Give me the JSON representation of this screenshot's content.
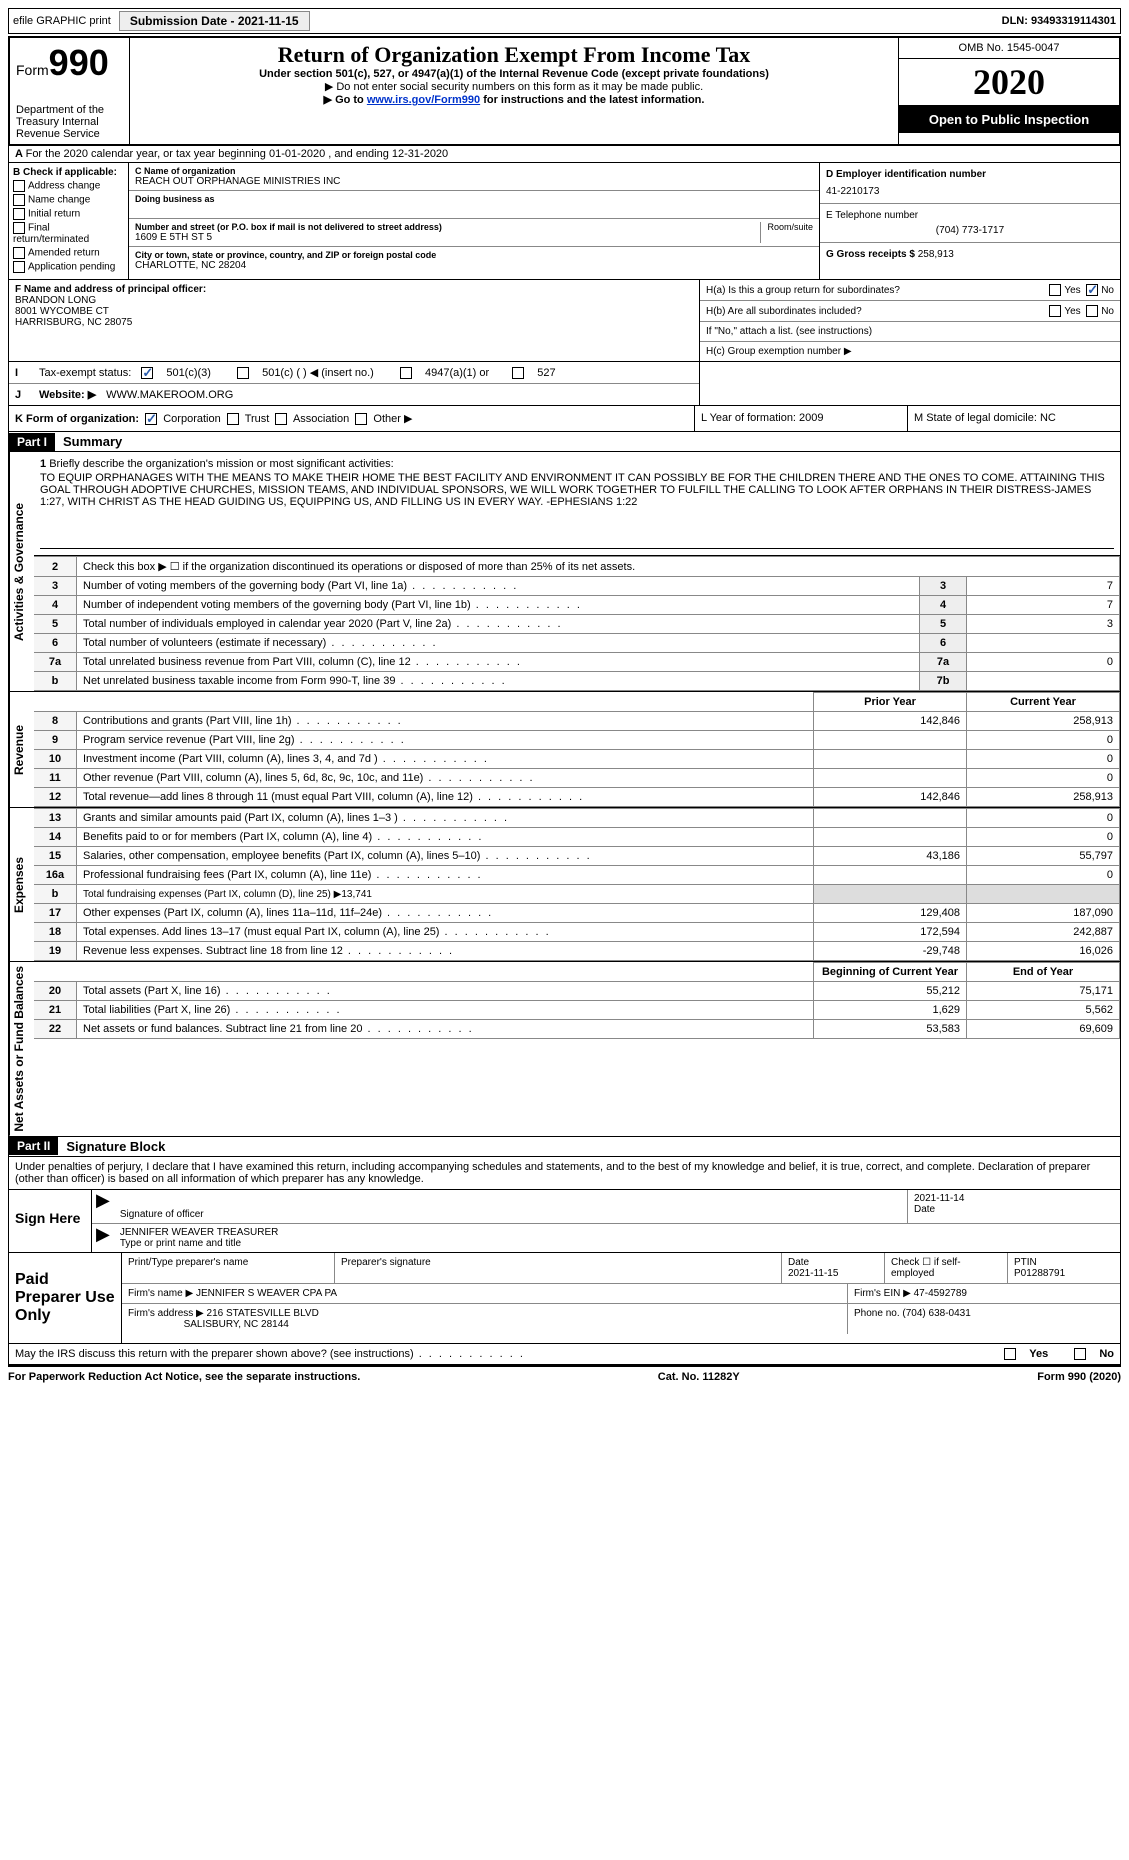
{
  "topbar": {
    "efile": "efile GRAPHIC print",
    "submission": "Submission Date - 2021-11-15",
    "dln": "DLN: 93493319114301"
  },
  "header": {
    "form": "Form",
    "num": "990",
    "dept": "Department of the Treasury Internal Revenue Service",
    "title": "Return of Organization Exempt From Income Tax",
    "subtitle": "Under section 501(c), 527, or 4947(a)(1) of the Internal Revenue Code (except private foundations)",
    "note1": "▶ Do not enter social security numbers on this form as it may be made public.",
    "note2_pre": "▶ Go to ",
    "note2_link": "www.irs.gov/Form990",
    "note2_post": " for instructions and the latest information.",
    "omb": "OMB No. 1545-0047",
    "year": "2020",
    "inspect": "Open to Public Inspection"
  },
  "sectionA": "For the 2020 calendar year, or tax year beginning 01-01-2020   , and ending 12-31-2020",
  "boxB": {
    "label": "B Check if applicable:",
    "items": [
      "Address change",
      "Name change",
      "Initial return",
      "Final return/terminated",
      "Amended return",
      "Application pending"
    ]
  },
  "boxC": {
    "label_name": "C Name of organization",
    "name": "REACH OUT ORPHANAGE MINISTRIES INC",
    "dba_label": "Doing business as",
    "addr_label": "Number and street (or P.O. box if mail is not delivered to street address)",
    "addr": "1609 E 5TH ST 5",
    "room_label": "Room/suite",
    "city_label": "City or town, state or province, country, and ZIP or foreign postal code",
    "city": "CHARLOTTE, NC  28204"
  },
  "boxD": {
    "label": "D Employer identification number",
    "value": "41-2210173"
  },
  "boxE": {
    "label": "E Telephone number",
    "value": "(704) 773-1717"
  },
  "boxG": {
    "label": "G Gross receipts $",
    "value": "258,913"
  },
  "boxF": {
    "label": "F Name and address of principal officer:",
    "name": "BRANDON LONG",
    "addr1": "8001 WYCOMBE CT",
    "addr2": "HARRISBURG, NC  28075"
  },
  "boxH": {
    "a": "H(a)  Is this a group return for subordinates?",
    "b": "H(b)  Are all subordinates included?",
    "b_note": "If \"No,\" attach a list. (see instructions)",
    "c": "H(c)  Group exemption number ▶",
    "yes": "Yes",
    "no": "No"
  },
  "rowI": {
    "label": "I",
    "text": "Tax-exempt status:",
    "opt1": "501(c)(3)",
    "opt2": "501(c) (  ) ◀ (insert no.)",
    "opt3": "4947(a)(1) or",
    "opt4": "527"
  },
  "rowJ": {
    "label": "J",
    "text": "Website: ▶",
    "value": "WWW.MAKEROOM.ORG"
  },
  "rowK": {
    "label": "K Form of organization:",
    "opts": [
      "Corporation",
      "Trust",
      "Association",
      "Other ▶"
    ],
    "L": "L Year of formation: 2009",
    "M": "M State of legal domicile: NC"
  },
  "part1": {
    "hdr": "Part I",
    "title": "Summary"
  },
  "mission": {
    "num": "1",
    "label": "Briefly describe the organization's mission or most significant activities:",
    "text": "TO EQUIP ORPHANAGES WITH THE MEANS TO MAKE THEIR HOME THE BEST FACILITY AND ENVIRONMENT IT CAN POSSIBLY BE FOR THE CHILDREN THERE AND THE ONES TO COME. ATTAINING THIS GOAL THROUGH ADOPTIVE CHURCHES, MISSION TEAMS, AND INDIVIDUAL SPONSORS, WE WILL WORK TOGETHER TO FULFILL THE CALLING TO LOOK AFTER ORPHANS IN THEIR DISTRESS-JAMES 1:27, WITH CHRIST AS THE HEAD GUIDING US, EQUIPPING US, AND FILLING US IN EVERY WAY. -EPHESIANS 1:22"
  },
  "gov_lines": [
    {
      "n": "2",
      "d": "Check this box ▶ ☐ if the organization discontinued its operations or disposed of more than 25% of its net assets.",
      "i": "",
      "v": ""
    },
    {
      "n": "3",
      "d": "Number of voting members of the governing body (Part VI, line 1a)",
      "i": "3",
      "v": "7"
    },
    {
      "n": "4",
      "d": "Number of independent voting members of the governing body (Part VI, line 1b)",
      "i": "4",
      "v": "7"
    },
    {
      "n": "5",
      "d": "Total number of individuals employed in calendar year 2020 (Part V, line 2a)",
      "i": "5",
      "v": "3"
    },
    {
      "n": "6",
      "d": "Total number of volunteers (estimate if necessary)",
      "i": "6",
      "v": ""
    },
    {
      "n": "7a",
      "d": "Total unrelated business revenue from Part VIII, column (C), line 12",
      "i": "7a",
      "v": "0"
    },
    {
      "n": "b",
      "d": "Net unrelated business taxable income from Form 990-T, line 39",
      "i": "7b",
      "v": ""
    }
  ],
  "vtabs": {
    "gov": "Activities & Governance",
    "rev": "Revenue",
    "exp": "Expenses",
    "net": "Net Assets or Fund Balances"
  },
  "col_hdrs": {
    "prior": "Prior Year",
    "current": "Current Year",
    "begin": "Beginning of Current Year",
    "end": "End of Year"
  },
  "rev_lines": [
    {
      "n": "8",
      "d": "Contributions and grants (Part VIII, line 1h)",
      "p": "142,846",
      "c": "258,913"
    },
    {
      "n": "9",
      "d": "Program service revenue (Part VIII, line 2g)",
      "p": "",
      "c": "0"
    },
    {
      "n": "10",
      "d": "Investment income (Part VIII, column (A), lines 3, 4, and 7d )",
      "p": "",
      "c": "0"
    },
    {
      "n": "11",
      "d": "Other revenue (Part VIII, column (A), lines 5, 6d, 8c, 9c, 10c, and 11e)",
      "p": "",
      "c": "0"
    },
    {
      "n": "12",
      "d": "Total revenue—add lines 8 through 11 (must equal Part VIII, column (A), line 12)",
      "p": "142,846",
      "c": "258,913"
    }
  ],
  "exp_lines": [
    {
      "n": "13",
      "d": "Grants and similar amounts paid (Part IX, column (A), lines 1–3 )",
      "p": "",
      "c": "0"
    },
    {
      "n": "14",
      "d": "Benefits paid to or for members (Part IX, column (A), line 4)",
      "p": "",
      "c": "0"
    },
    {
      "n": "15",
      "d": "Salaries, other compensation, employee benefits (Part IX, column (A), lines 5–10)",
      "p": "43,186",
      "c": "55,797"
    },
    {
      "n": "16a",
      "d": "Professional fundraising fees (Part IX, column (A), line 11e)",
      "p": "",
      "c": "0"
    },
    {
      "n": "b",
      "d": "Total fundraising expenses (Part IX, column (D), line 25) ▶13,741",
      "p": "—",
      "c": "—"
    },
    {
      "n": "17",
      "d": "Other expenses (Part IX, column (A), lines 11a–11d, 11f–24e)",
      "p": "129,408",
      "c": "187,090"
    },
    {
      "n": "18",
      "d": "Total expenses. Add lines 13–17 (must equal Part IX, column (A), line 25)",
      "p": "172,594",
      "c": "242,887"
    },
    {
      "n": "19",
      "d": "Revenue less expenses. Subtract line 18 from line 12",
      "p": "-29,748",
      "c": "16,026"
    }
  ],
  "net_lines": [
    {
      "n": "20",
      "d": "Total assets (Part X, line 16)",
      "p": "55,212",
      "c": "75,171"
    },
    {
      "n": "21",
      "d": "Total liabilities (Part X, line 26)",
      "p": "1,629",
      "c": "5,562"
    },
    {
      "n": "22",
      "d": "Net assets or fund balances. Subtract line 21 from line 20",
      "p": "53,583",
      "c": "69,609"
    }
  ],
  "part2": {
    "hdr": "Part II",
    "title": "Signature Block"
  },
  "penalty": "Under penalties of perjury, I declare that I have examined this return, including accompanying schedules and statements, and to the best of my knowledge and belief, it is true, correct, and complete. Declaration of preparer (other than officer) is based on all information of which preparer has any knowledge.",
  "sign": {
    "here": "Sign Here",
    "sig_label": "Signature of officer",
    "date_label": "Date",
    "date": "2021-11-14",
    "name": "JENNIFER WEAVER TREASURER",
    "name_label": "Type or print name and title"
  },
  "prep": {
    "title": "Paid Preparer Use Only",
    "name_label": "Print/Type preparer's name",
    "sig_label": "Preparer's signature",
    "date_label": "Date",
    "date": "2021-11-15",
    "check_label": "Check ☐ if self-employed",
    "ptin_label": "PTIN",
    "ptin": "P01288791",
    "firm_name_label": "Firm's name    ▶",
    "firm_name": "JENNIFER S WEAVER CPA PA",
    "firm_ein_label": "Firm's EIN ▶",
    "firm_ein": "47-4592789",
    "firm_addr_label": "Firm's address ▶",
    "firm_addr": "216 STATESVILLE BLVD",
    "firm_city": "SALISBURY, NC  28144",
    "phone_label": "Phone no.",
    "phone": "(704) 638-0431"
  },
  "discuss": "May the IRS discuss this return with the preparer shown above? (see instructions)",
  "footer": {
    "left": "For Paperwork Reduction Act Notice, see the separate instructions.",
    "mid": "Cat. No. 11282Y",
    "right": "Form 990 (2020)"
  }
}
